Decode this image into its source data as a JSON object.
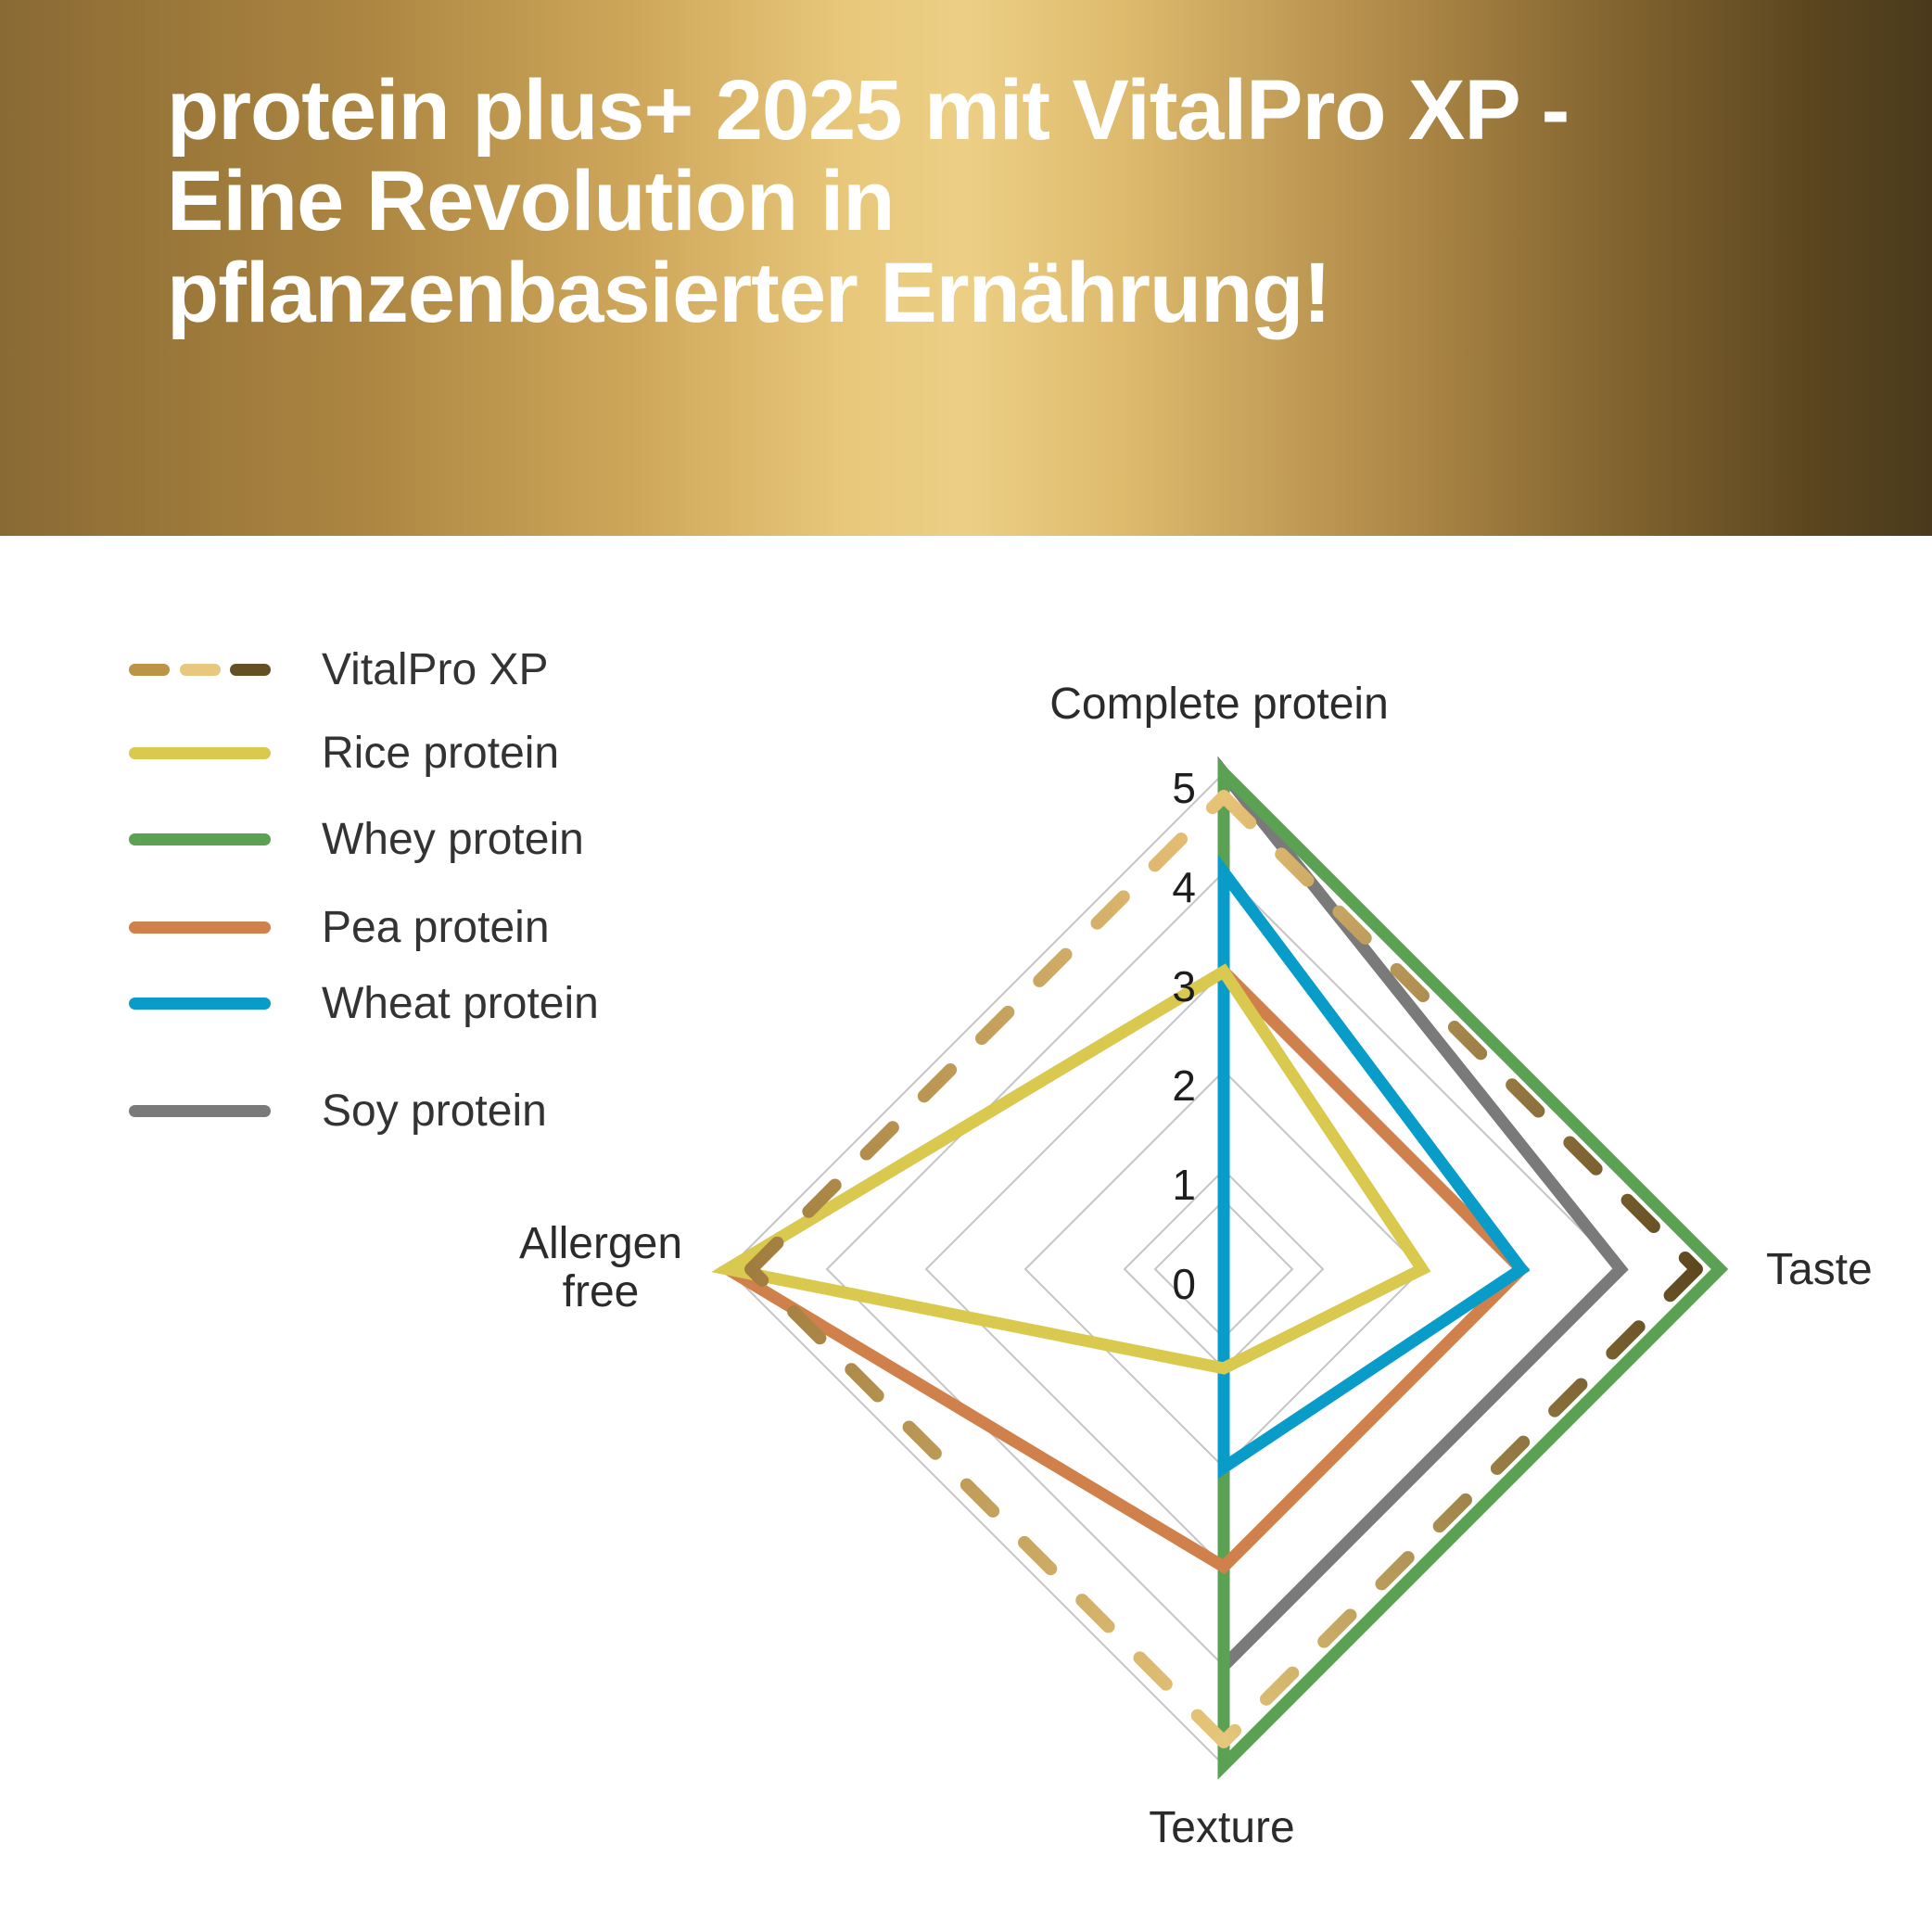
{
  "banner": {
    "title": "protein plus+ 2025 mit VitalPro XP -\nEine Revolution in\npflanzenbasierter Ernährung!",
    "text_color": "#ffffff",
    "gradient_stops": [
      "#8a6a34 0%",
      "#aa8440 18%",
      "#cfa75b 33%",
      "#e8c87b 44%",
      "#eccf85 50%",
      "#debb6e 58%",
      "#b08a48 72%",
      "#81632f 84%",
      "#5a451f 94%",
      "#4a3a1b 100%"
    ]
  },
  "chart_data": {
    "type": "radar",
    "axes": [
      "Complete protein",
      "Taste",
      "Texture",
      "Allergen free"
    ],
    "axes_display": {
      "complete": "Complete protein",
      "taste": "Taste",
      "texture": "Texture",
      "allergen_lines": [
        "Allergen",
        "free"
      ]
    },
    "tick_labels": [
      "5",
      "4",
      "3",
      "2",
      "1",
      "0"
    ],
    "rmin": 0,
    "rmax": 5,
    "grid": true,
    "legend_position": "left",
    "values_axis_order": [
      "Complete protein",
      "Taste",
      "Texture",
      "Allergen free"
    ],
    "series": [
      {
        "key": "vitalpro",
        "name": "VitalPro XP",
        "values": [
          5,
          5,
          5,
          5
        ],
        "style": "dashed",
        "color_gradient": [
          "#e8c377",
          "#5e481e",
          "#e6c67a",
          "#a07c3e"
        ],
        "legend_dash_colors": [
          "#bd9347",
          "#e7c87e",
          "#655023"
        ]
      },
      {
        "key": "rice",
        "name": "Rice protein",
        "values": [
          3,
          2,
          1,
          5
        ],
        "color": "#d9c94f"
      },
      {
        "key": "whey",
        "name": "Whey protein",
        "values": [
          5,
          5,
          5,
          0
        ],
        "color": "#5ba153"
      },
      {
        "key": "pea",
        "name": "Pea protein",
        "values": [
          3,
          3,
          3,
          5
        ],
        "color": "#d0814b"
      },
      {
        "key": "wheat",
        "name": "Wheat protein",
        "values": [
          4,
          3,
          2,
          0
        ],
        "color": "#0a9cc8"
      },
      {
        "key": "soy",
        "name": "Soy protein",
        "values": [
          5,
          4,
          4,
          0
        ],
        "color": "#7a7a7a"
      }
    ],
    "draw_order": [
      "soy",
      "whey",
      "pea",
      "wheat",
      "rice",
      "vitalpro"
    ]
  },
  "colors": {
    "background": "#ffffff",
    "grid": "#c5c5c5",
    "tick_label": "#1e1e1e",
    "axis_label": "#2b2b2b",
    "legend_label": "#333333"
  }
}
